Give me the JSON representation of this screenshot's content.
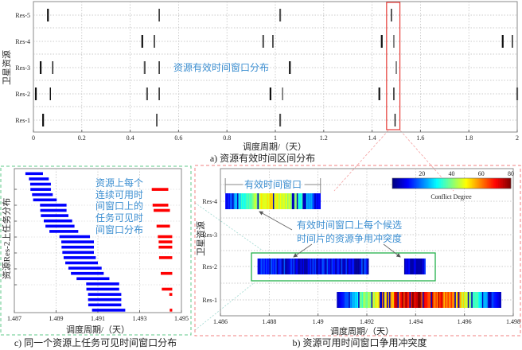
{
  "chart_data": [
    {
      "id": "a",
      "type": "timeline",
      "caption": "a) 资源有效时间区间分布",
      "xlabel": "调度周期/（天）",
      "ylabel": "卫星资源",
      "xlim": [
        0,
        2
      ],
      "xticks": [
        "0",
        "0.2",
        "0.4",
        "0.6",
        "0.8",
        "1",
        "1.2",
        "1.4",
        "1.6",
        "1.8",
        "2"
      ],
      "categories": [
        "Res-5",
        "Res-4",
        "Res-3",
        "Res-2",
        "Res-1"
      ],
      "grid": true,
      "annotation": "资源有效时间窗口分布",
      "highlight_range": [
        1.46,
        1.515
      ],
      "series": [
        {
          "category": "Res-5",
          "windows": [
            0.06,
            0.52,
            1.02,
            1.48
          ]
        },
        {
          "category": "Res-4",
          "windows": [
            0.45,
            0.5,
            0.95,
            0.99,
            1.44,
            1.49,
            1.94,
            1.98
          ]
        },
        {
          "category": "Res-3",
          "windows": [
            0.03,
            0.08,
            0.46,
            0.52,
            1.06,
            1.5
          ]
        },
        {
          "category": "Res-2",
          "windows": [
            0.01,
            0.07,
            0.47,
            0.52,
            0.98,
            1.03,
            1.43,
            1.49,
            2.0
          ]
        },
        {
          "category": "Res-1",
          "windows": [
            0.04,
            0.51,
            1.02,
            1.495
          ]
        }
      ]
    },
    {
      "id": "b",
      "type": "heatmap",
      "caption": "b) 资源可用时间窗口争用冲突度",
      "xlabel": "调度周期/（天）",
      "ylabel": "卫星资源",
      "xlim": [
        1.486,
        1.498
      ],
      "xticks": [
        "1.486",
        "1.488",
        "1.49",
        "1.492",
        "1.494",
        "1.496",
        "1.498"
      ],
      "categories": [
        "Res-4",
        "Res-3",
        "Res-2",
        "Res-1"
      ],
      "grid": true,
      "colorbar": {
        "label": "Conflict Degree",
        "range": [
          0,
          80
        ],
        "ticks": [
          "20",
          "40",
          "60",
          "80"
        ],
        "colormap": "jet"
      },
      "annotations": {
        "window": "有效时间窗口",
        "line1": "有效时间窗口上每个候选",
        "line2": "时间片的资源争用冲突度"
      },
      "bars": [
        {
          "category": "Res-4",
          "start": 1.4862,
          "end": 1.4901,
          "conflict_range": [
            5,
            55
          ]
        },
        {
          "category": "Res-2",
          "start": 1.48752,
          "end": 1.49207,
          "conflict_range": [
            2,
            18
          ]
        },
        {
          "category": "Res-2",
          "start": 1.49353,
          "end": 1.4944,
          "conflict_range": [
            2,
            15
          ]
        },
        {
          "category": "Res-1",
          "start": 1.49077,
          "end": 1.4975,
          "conflict_range": [
            5,
            80
          ]
        }
      ]
    },
    {
      "id": "c",
      "type": "gantt",
      "caption": "c) 同一个资源上任务可见时间窗口分布",
      "xlabel": "调度周期/（天）",
      "ylabel": "资源Res-2上任务分布",
      "xlim": [
        1.487,
        1.495
      ],
      "xticks": [
        "1.487",
        "1.489",
        "1.491",
        "1.493",
        "1.495"
      ],
      "annotation": [
        "资源上每个",
        "连续可用时",
        "间窗口上的",
        "任务可见时",
        "间窗口分布"
      ],
      "colors": {
        "first_window": "#0000ff",
        "second_window": "#ff0000"
      },
      "tasks_first_window": [
        [
          1.48753,
          1.48837
        ],
        [
          1.4877,
          1.48865
        ],
        [
          1.48776,
          1.48875
        ],
        [
          1.48777,
          1.48875
        ],
        [
          1.48785,
          1.48884
        ],
        [
          1.4879,
          1.48903
        ],
        [
          1.48823,
          1.4895
        ],
        [
          1.48824,
          1.4895
        ],
        [
          1.48827,
          1.48959
        ],
        [
          1.48841,
          1.48977
        ],
        [
          1.48849,
          1.48988
        ],
        [
          1.48868,
          1.49006
        ],
        [
          1.48916,
          1.49062
        ],
        [
          1.48925,
          1.49081
        ],
        [
          1.48926,
          1.49081
        ],
        [
          1.4893,
          1.49081
        ],
        [
          1.48936,
          1.4909
        ],
        [
          1.48944,
          1.491
        ],
        [
          1.48959,
          1.49118
        ],
        [
          1.48971,
          1.49128
        ],
        [
          1.48998,
          1.49155
        ],
        [
          1.49044,
          1.49202
        ],
        [
          1.49045,
          1.49202
        ],
        [
          1.49053,
          1.49212
        ],
        [
          1.49053,
          1.49212
        ],
        [
          1.49054,
          1.49212
        ],
        [
          1.49072,
          1.49231
        ]
      ],
      "tasks_second_window": [
        {
          "row": 3,
          "range": [
            1.49358,
            1.49437
          ]
        },
        {
          "row": 6,
          "range": [
            1.49362,
            1.49437
          ]
        },
        {
          "row": 7,
          "range": [
            1.49367,
            1.49445
          ]
        },
        {
          "row": 10,
          "range": [
            1.49381,
            1.49445
          ]
        },
        {
          "row": 12,
          "range": [
            1.49387,
            1.49456
          ]
        },
        {
          "row": 13,
          "range": [
            1.49391,
            1.49456
          ]
        },
        {
          "row": 14,
          "range": [
            1.49391,
            1.49456
          ]
        },
        {
          "row": 16,
          "range": [
            1.49393,
            1.49456
          ]
        },
        {
          "row": 19,
          "range": [
            1.49401,
            1.49456
          ]
        },
        {
          "row": 22,
          "range": [
            1.49406,
            1.49456
          ]
        },
        {
          "row": 23,
          "range": [
            1.49442,
            1.49456
          ]
        },
        {
          "row": 26,
          "range": [
            1.49444,
            1.49456
          ]
        }
      ]
    }
  ]
}
